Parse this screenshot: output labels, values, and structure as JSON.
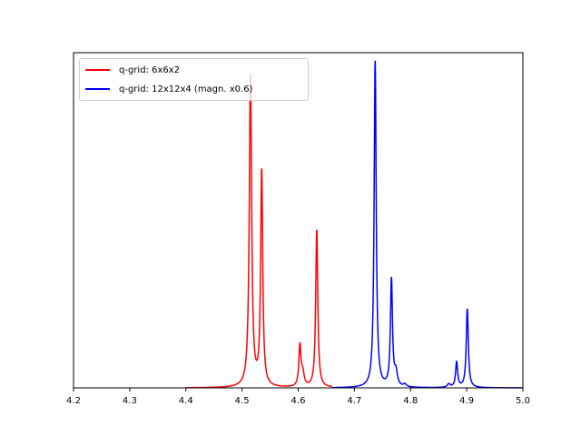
{
  "chart_data": {
    "type": "line",
    "title": "",
    "xlabel": "",
    "ylabel": "",
    "xlim": [
      4.2,
      5.0
    ],
    "ylim": [
      0,
      1.0
    ],
    "xticks": [
      "4.2",
      "4.3",
      "4.4",
      "4.5",
      "4.6",
      "4.7",
      "4.8",
      "4.9",
      "5.0"
    ],
    "yticks": [],
    "grid": false,
    "legend_position": "upper left",
    "series": [
      {
        "name": "q-grid: 6x6x2",
        "color": "#ff0000",
        "x_range": [
          4.4,
          4.66
        ],
        "peaks": [
          {
            "x": 4.515,
            "height": 0.93,
            "width": 0.0025
          },
          {
            "x": 4.535,
            "height": 0.64,
            "width": 0.0022
          },
          {
            "x": 4.603,
            "height": 0.12,
            "width": 0.0022
          },
          {
            "x": 4.608,
            "height": 0.04,
            "width": 0.003
          },
          {
            "x": 4.633,
            "height": 0.47,
            "width": 0.0022
          },
          {
            "x": 4.677,
            "height": 0.025,
            "width": 0.002
          }
        ]
      },
      {
        "name": "q-grid: 12x12x4 (magn. x0.6)",
        "color": "#0000ff",
        "x_range": [
          4.66,
          5.0
        ],
        "peaks": [
          {
            "x": 4.737,
            "height": 0.975,
            "width": 0.0022
          },
          {
            "x": 4.766,
            "height": 0.32,
            "width": 0.0022
          },
          {
            "x": 4.774,
            "height": 0.04,
            "width": 0.003
          },
          {
            "x": 4.79,
            "height": 0.008,
            "width": 0.003
          },
          {
            "x": 4.868,
            "height": 0.01,
            "width": 0.003
          },
          {
            "x": 4.882,
            "height": 0.075,
            "width": 0.0022
          },
          {
            "x": 4.901,
            "height": 0.235,
            "width": 0.0022
          }
        ]
      }
    ]
  },
  "legend": {
    "items": [
      {
        "label": "q-grid: 6x6x2",
        "color": "#ff0000"
      },
      {
        "label": "q-grid: 12x12x4 (magn. x0.6)",
        "color": "#0000ff"
      }
    ]
  }
}
